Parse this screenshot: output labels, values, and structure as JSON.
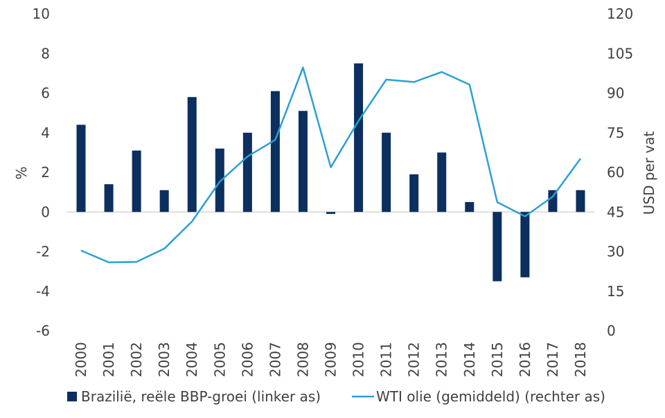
{
  "chart_data": {
    "type": "bar",
    "title": "",
    "categories": [
      "2000",
      "2001",
      "2002",
      "2003",
      "2004",
      "2005",
      "2006",
      "2007",
      "2008",
      "2009",
      "2010",
      "2011",
      "2012",
      "2013",
      "2014",
      "2015",
      "2016",
      "2017",
      "2018"
    ],
    "series": [
      {
        "name": "Brazilië, reële BBP-groei (linker as)",
        "type": "bar",
        "axis": "left",
        "color": "#0b2f5e",
        "values": [
          4.4,
          1.4,
          3.1,
          1.1,
          5.8,
          3.2,
          4.0,
          6.1,
          5.1,
          -0.1,
          7.5,
          4.0,
          1.9,
          3.0,
          0.5,
          -3.5,
          -3.3,
          1.1,
          1.1
        ]
      },
      {
        "name": "WTI olie (gemiddeld) (rechter as)",
        "type": "line",
        "axis": "right",
        "color": "#2a9fd6",
        "values": [
          30.4,
          25.9,
          26.1,
          31.1,
          41.4,
          56.5,
          66.0,
          72.3,
          99.7,
          61.9,
          79.5,
          95.1,
          94.2,
          98.0,
          93.2,
          48.7,
          43.3,
          50.8,
          65.2
        ]
      }
    ],
    "ylabel_left": "%",
    "ylabel_right": "USD per vat",
    "ylim_left": [
      -6,
      10
    ],
    "ylim_right": [
      0,
      120
    ],
    "yticks_left": [
      "10",
      "8",
      "6",
      "4",
      "2",
      "0",
      "-2",
      "-4",
      "-6"
    ],
    "yticks_right": [
      "120",
      "105",
      "90",
      "75",
      "60",
      "45",
      "30",
      "15",
      "0"
    ],
    "grid": false,
    "legend_position": "bottom"
  }
}
